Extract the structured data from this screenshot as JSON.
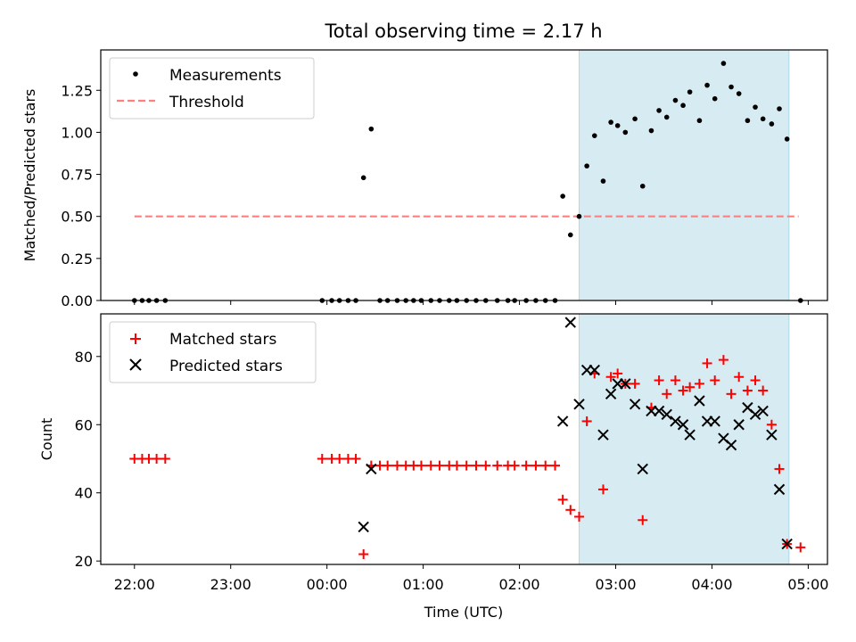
{
  "title": "Total observing time = 2.17 h",
  "xlabel": "Time (UTC)",
  "x_ticks": [
    {
      "t": 0,
      "label": "22:00"
    },
    {
      "t": 1,
      "label": "23:00"
    },
    {
      "t": 2,
      "label": "00:00"
    },
    {
      "t": 3,
      "label": "01:00"
    },
    {
      "t": 4,
      "label": "02:00"
    },
    {
      "t": 5,
      "label": "03:00"
    },
    {
      "t": 6,
      "label": "04:00"
    },
    {
      "t": 7,
      "label": "05:00"
    }
  ],
  "colors": {
    "span": "#add8e6",
    "threshold": "#ff7f7f",
    "matched": "#ff0000",
    "predicted": "#000000",
    "measurements": "#000000"
  },
  "chart_data": [
    {
      "type": "scatter",
      "ylabel": "Matched/Predicted stars",
      "xlim": [
        -0.35,
        7.2
      ],
      "ylim": [
        0,
        1.49
      ],
      "y_ticks": [
        "0.00",
        "0.25",
        "0.50",
        "0.75",
        "1.00",
        "1.25"
      ],
      "shaded_span": [
        4.62,
        6.8
      ],
      "legend": {
        "position": "upper left",
        "entries": [
          "Measurements",
          "Threshold"
        ]
      },
      "threshold": {
        "name": "Threshold",
        "value": 0.5,
        "x_range": [
          0,
          6.9
        ]
      },
      "measurements": {
        "name": "Measurements",
        "points": [
          [
            0.0,
            0
          ],
          [
            0.08,
            0
          ],
          [
            0.15,
            0
          ],
          [
            0.23,
            0
          ],
          [
            0.32,
            0
          ],
          [
            1.95,
            0
          ],
          [
            2.05,
            0
          ],
          [
            2.13,
            0
          ],
          [
            2.22,
            0
          ],
          [
            2.3,
            0
          ],
          [
            2.38,
            0.73
          ],
          [
            2.46,
            1.02
          ],
          [
            2.55,
            0
          ],
          [
            2.63,
            0
          ],
          [
            2.73,
            0
          ],
          [
            2.82,
            0
          ],
          [
            2.9,
            0
          ],
          [
            2.98,
            0
          ],
          [
            3.08,
            0
          ],
          [
            3.17,
            0
          ],
          [
            3.27,
            0
          ],
          [
            3.35,
            0
          ],
          [
            3.45,
            0
          ],
          [
            3.55,
            0
          ],
          [
            3.65,
            0
          ],
          [
            3.77,
            0
          ],
          [
            3.88,
            0
          ],
          [
            3.95,
            0
          ],
          [
            4.07,
            0
          ],
          [
            4.17,
            0
          ],
          [
            4.27,
            0
          ],
          [
            4.37,
            0
          ],
          [
            4.45,
            0.62
          ],
          [
            4.53,
            0.39
          ],
          [
            4.62,
            0.5
          ],
          [
            4.7,
            0.8
          ],
          [
            4.78,
            0.98
          ],
          [
            4.87,
            0.71
          ],
          [
            4.95,
            1.06
          ],
          [
            5.02,
            1.04
          ],
          [
            5.1,
            1.0
          ],
          [
            5.2,
            1.08
          ],
          [
            5.28,
            0.68
          ],
          [
            5.37,
            1.01
          ],
          [
            5.45,
            1.13
          ],
          [
            5.53,
            1.09
          ],
          [
            5.62,
            1.19
          ],
          [
            5.7,
            1.16
          ],
          [
            5.77,
            1.24
          ],
          [
            5.87,
            1.07
          ],
          [
            5.95,
            1.28
          ],
          [
            6.03,
            1.2
          ],
          [
            6.12,
            1.41
          ],
          [
            6.2,
            1.27
          ],
          [
            6.28,
            1.23
          ],
          [
            6.37,
            1.07
          ],
          [
            6.45,
            1.15
          ],
          [
            6.53,
            1.08
          ],
          [
            6.62,
            1.05
          ],
          [
            6.7,
            1.14
          ],
          [
            6.78,
            0.96
          ],
          [
            6.92,
            0
          ]
        ]
      }
    },
    {
      "type": "scatter",
      "ylabel": "Count",
      "xlim": [
        -0.35,
        7.2
      ],
      "ylim": [
        19,
        92.5
      ],
      "y_ticks": [
        "20",
        "40",
        "60",
        "80"
      ],
      "shaded_span": [
        4.62,
        6.8
      ],
      "legend": {
        "position": "upper left",
        "entries": [
          "Matched stars",
          "Predicted stars"
        ]
      },
      "matched": {
        "name": "Matched stars",
        "points": [
          [
            0.0,
            50
          ],
          [
            0.08,
            50
          ],
          [
            0.15,
            50
          ],
          [
            0.23,
            50
          ],
          [
            0.32,
            50
          ],
          [
            1.95,
            50
          ],
          [
            2.05,
            50
          ],
          [
            2.13,
            50
          ],
          [
            2.22,
            50
          ],
          [
            2.3,
            50
          ],
          [
            2.38,
            22
          ],
          [
            2.46,
            48
          ],
          [
            2.55,
            48
          ],
          [
            2.63,
            48
          ],
          [
            2.73,
            48
          ],
          [
            2.82,
            48
          ],
          [
            2.9,
            48
          ],
          [
            2.98,
            48
          ],
          [
            3.08,
            48
          ],
          [
            3.17,
            48
          ],
          [
            3.27,
            48
          ],
          [
            3.35,
            48
          ],
          [
            3.45,
            48
          ],
          [
            3.55,
            48
          ],
          [
            3.65,
            48
          ],
          [
            3.77,
            48
          ],
          [
            3.88,
            48
          ],
          [
            3.95,
            48
          ],
          [
            4.07,
            48
          ],
          [
            4.17,
            48
          ],
          [
            4.27,
            48
          ],
          [
            4.37,
            48
          ],
          [
            4.45,
            38
          ],
          [
            4.53,
            35
          ],
          [
            4.62,
            33
          ],
          [
            4.7,
            61
          ],
          [
            4.78,
            75
          ],
          [
            4.87,
            41
          ],
          [
            4.95,
            74
          ],
          [
            5.02,
            75
          ],
          [
            5.1,
            72
          ],
          [
            5.2,
            72
          ],
          [
            5.28,
            32
          ],
          [
            5.37,
            65
          ],
          [
            5.45,
            73
          ],
          [
            5.53,
            69
          ],
          [
            5.62,
            73
          ],
          [
            5.7,
            70
          ],
          [
            5.77,
            71
          ],
          [
            5.87,
            72
          ],
          [
            5.95,
            78
          ],
          [
            6.03,
            73
          ],
          [
            6.12,
            79
          ],
          [
            6.2,
            69
          ],
          [
            6.28,
            74
          ],
          [
            6.37,
            70
          ],
          [
            6.45,
            73
          ],
          [
            6.53,
            70
          ],
          [
            6.62,
            60
          ],
          [
            6.7,
            47
          ],
          [
            6.78,
            25
          ],
          [
            6.92,
            24
          ]
        ]
      },
      "predicted": {
        "name": "Predicted stars",
        "points": [
          [
            2.38,
            30
          ],
          [
            2.46,
            47
          ],
          [
            4.45,
            61
          ],
          [
            4.53,
            90
          ],
          [
            4.62,
            66
          ],
          [
            4.7,
            76
          ],
          [
            4.78,
            76
          ],
          [
            4.87,
            57
          ],
          [
            4.95,
            69
          ],
          [
            5.02,
            72
          ],
          [
            5.1,
            72
          ],
          [
            5.2,
            66
          ],
          [
            5.28,
            47
          ],
          [
            5.37,
            64
          ],
          [
            5.45,
            64
          ],
          [
            5.53,
            63
          ],
          [
            5.62,
            61
          ],
          [
            5.7,
            60
          ],
          [
            5.77,
            57
          ],
          [
            5.87,
            67
          ],
          [
            5.95,
            61
          ],
          [
            6.03,
            61
          ],
          [
            6.12,
            56
          ],
          [
            6.2,
            54
          ],
          [
            6.28,
            60
          ],
          [
            6.37,
            65
          ],
          [
            6.45,
            63
          ],
          [
            6.53,
            64
          ],
          [
            6.62,
            57
          ],
          [
            6.7,
            41
          ],
          [
            6.78,
            25
          ]
        ]
      }
    }
  ]
}
